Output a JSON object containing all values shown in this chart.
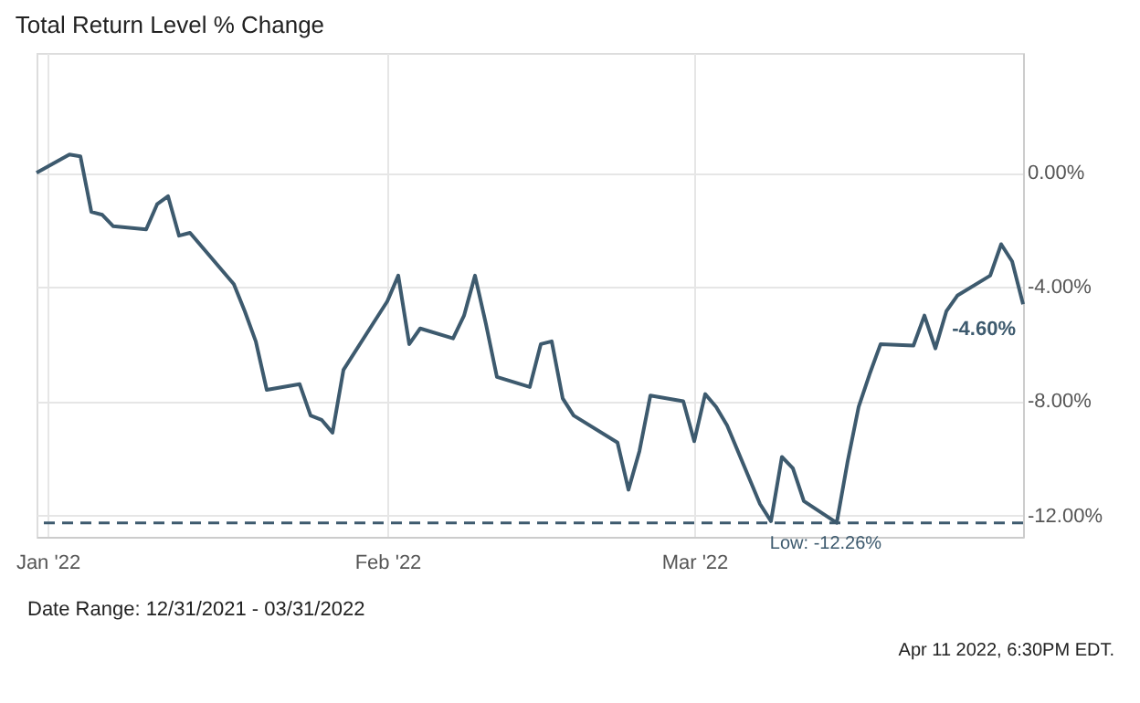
{
  "chart_data": {
    "type": "line",
    "title": "Total Return Level % Change",
    "x": [
      "2021-12-31",
      "2022-01-03",
      "2022-01-04",
      "2022-01-05",
      "2022-01-06",
      "2022-01-07",
      "2022-01-10",
      "2022-01-11",
      "2022-01-12",
      "2022-01-13",
      "2022-01-14",
      "2022-01-18",
      "2022-01-19",
      "2022-01-20",
      "2022-01-21",
      "2022-01-24",
      "2022-01-25",
      "2022-01-26",
      "2022-01-27",
      "2022-01-28",
      "2022-01-31",
      "2022-02-01",
      "2022-02-02",
      "2022-02-03",
      "2022-02-04",
      "2022-02-07",
      "2022-02-08",
      "2022-02-09",
      "2022-02-10",
      "2022-02-11",
      "2022-02-14",
      "2022-02-15",
      "2022-02-16",
      "2022-02-17",
      "2022-02-18",
      "2022-02-22",
      "2022-02-23",
      "2022-02-24",
      "2022-02-25",
      "2022-02-28",
      "2022-03-01",
      "2022-03-02",
      "2022-03-03",
      "2022-03-04",
      "2022-03-07",
      "2022-03-08",
      "2022-03-09",
      "2022-03-10",
      "2022-03-11",
      "2022-03-14",
      "2022-03-15",
      "2022-03-16",
      "2022-03-17",
      "2022-03-18",
      "2022-03-21",
      "2022-03-22",
      "2022-03-23",
      "2022-03-24",
      "2022-03-25",
      "2022-03-28",
      "2022-03-29",
      "2022-03-30",
      "2022-03-31"
    ],
    "series": [
      {
        "color": "#3d5a6e",
        "values": [
          0,
          0.64,
          0.58,
          -1.37,
          -1.47,
          -1.87,
          -1.98,
          -1.1,
          -0.82,
          -2.2,
          -2.1,
          -3.9,
          -4.85,
          -5.9,
          -7.6,
          -7.4,
          -8.5,
          -8.65,
          -9.1,
          -6.9,
          -5.1,
          -4.5,
          -3.6,
          -6.0,
          -5.45,
          -5.8,
          -5.0,
          -3.6,
          -5.3,
          -7.15,
          -7.5,
          -6.0,
          -5.9,
          -7.9,
          -8.5,
          -9.45,
          -11.1,
          -9.75,
          -7.8,
          -8.0,
          -9.4,
          -7.75,
          -8.2,
          -8.85,
          -11.6,
          -12.2,
          -9.95,
          -10.35,
          -11.5,
          -12.26,
          -10.1,
          -8.2,
          -7.05,
          -6.0,
          -6.05,
          -5.0,
          -6.15,
          -4.85,
          -4.3,
          -3.6,
          -2.5,
          -3.1,
          -4.6
        ]
      }
    ],
    "xlim": [
      "2021-12-31",
      "2022-03-31"
    ],
    "xticks": [
      {
        "value": "2022-01-01",
        "label": "Jan '22"
      },
      {
        "value": "2022-02-01",
        "label": "Feb '22"
      },
      {
        "value": "2022-03-01",
        "label": "Mar '22"
      }
    ],
    "ylim": [
      -12.75,
      4.2
    ],
    "yticks": [
      {
        "value": 0,
        "label": "0.00%"
      },
      {
        "value": -4,
        "label": "-4.00%"
      },
      {
        "value": -8,
        "label": "-8.00%"
      },
      {
        "value": -12,
        "label": "-12.00%"
      }
    ],
    "ref_lines": [
      {
        "axis": "y",
        "value": -12.26,
        "label": "Low: -12.26%",
        "color": "#3d5a6e",
        "line_style": "dashed"
      }
    ],
    "annotations": [
      {
        "text": "-4.60%",
        "x": "2022-03-31",
        "y": -4.6
      },
      "Date Range: 12/31/2021 - 03/31/2022",
      "Apr 11 2022, 6:30PM EDT."
    ],
    "grid": true,
    "marker": "none",
    "line_style": "solid"
  }
}
